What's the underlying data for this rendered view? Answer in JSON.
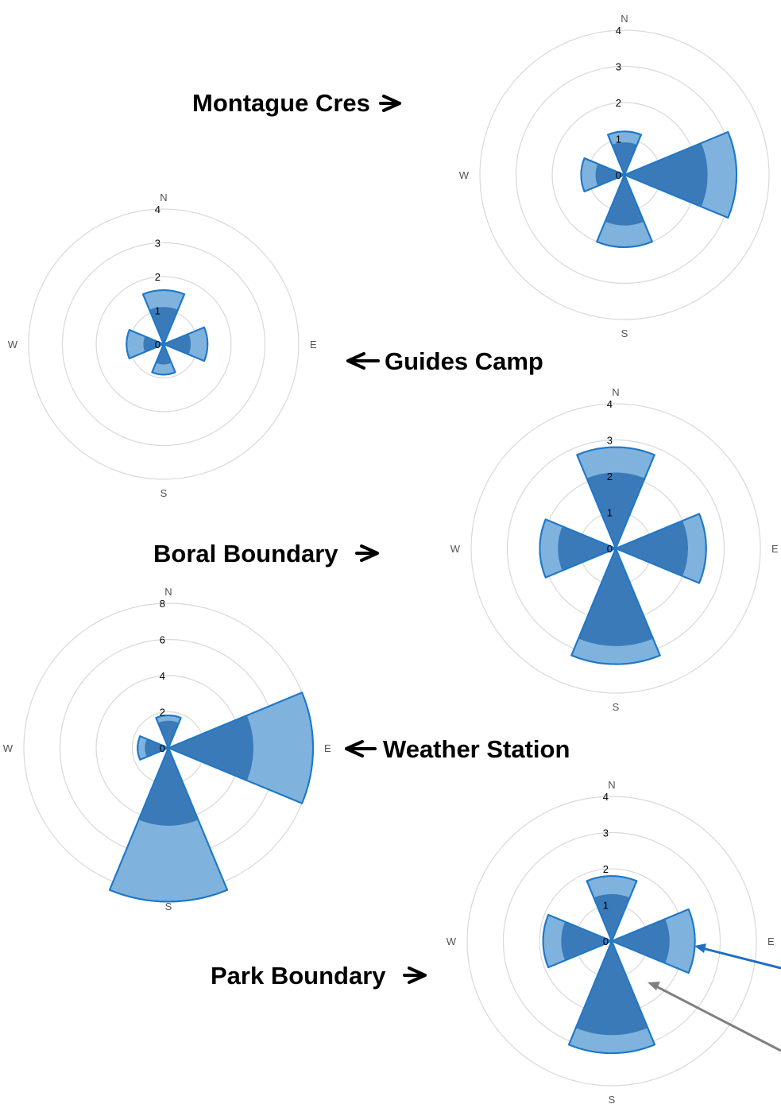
{
  "colors": {
    "outer_fill": "#7fb3dd",
    "inner_fill": "#3b7ab9",
    "stroke": "#1f78c8",
    "grid": "#d9d9d9",
    "arrow_blue": "#1f6fbf",
    "arrow_grey": "#808080"
  },
  "directions": {
    "n": "N",
    "e": "E",
    "s": "S",
    "w": "W"
  },
  "chart_data": [
    {
      "type": "radar",
      "subtype": "filled-sector rose",
      "site": "Montague Cres",
      "label_text": "Montague Cres",
      "label_arrow": "right",
      "radial_ticks": [
        "0",
        "1",
        "2",
        "3",
        "4"
      ],
      "rmax": 4,
      "categories": [
        "N",
        "E",
        "S",
        "W"
      ],
      "series": [
        {
          "values": [
            1.2,
            3.1,
            2.0,
            1.2
          ]
        },
        {
          "values": [
            0.9,
            2.3,
            1.4,
            0.8
          ]
        }
      ]
    },
    {
      "type": "radar",
      "subtype": "filled-sector rose",
      "site": "Guides Camp",
      "label_text": "Guides Camp",
      "label_arrow": "left",
      "radial_ticks": [
        "0",
        "1",
        "2",
        "3",
        "4"
      ],
      "rmax": 4,
      "categories": [
        "N",
        "E",
        "S",
        "W"
      ],
      "series": [
        {
          "values": [
            1.6,
            1.3,
            0.9,
            1.1
          ]
        },
        {
          "values": [
            1.1,
            0.8,
            0.6,
            0.6
          ]
        }
      ]
    },
    {
      "type": "radar",
      "subtype": "filled-sector rose",
      "site": "Boral Boundary",
      "label_text": "Boral Boundary",
      "label_arrow": "right",
      "radial_ticks": [
        "0",
        "1",
        "2",
        "3",
        "4"
      ],
      "rmax": 4,
      "categories": [
        "N",
        "E",
        "S",
        "W"
      ],
      "series": [
        {
          "values": [
            2.8,
            2.5,
            3.2,
            2.1
          ]
        },
        {
          "values": [
            2.1,
            2.0,
            2.7,
            1.6
          ]
        }
      ]
    },
    {
      "type": "radar",
      "subtype": "filled-sector rose",
      "site": "Weather Station",
      "label_text": "Weather Station",
      "label_arrow": "left",
      "radial_ticks": [
        "0",
        "2",
        "4",
        "6",
        "8"
      ],
      "rmax": 8,
      "categories": [
        "N",
        "E",
        "S",
        "W"
      ],
      "series": [
        {
          "values": [
            1.8,
            8.0,
            8.5,
            1.7
          ]
        },
        {
          "values": [
            1.5,
            4.7,
            4.3,
            1.3
          ]
        }
      ]
    },
    {
      "type": "radar",
      "subtype": "filled-sector rose",
      "site": "Park Boundary",
      "label_text": "Park Boundary",
      "label_arrow": "right",
      "radial_ticks": [
        "0",
        "1",
        "2",
        "3",
        "4"
      ],
      "rmax": 4,
      "categories": [
        "N",
        "E",
        "S",
        "W"
      ],
      "series": [
        {
          "values": [
            1.8,
            2.3,
            3.1,
            1.9
          ]
        },
        {
          "values": [
            1.3,
            1.6,
            2.6,
            1.4
          ]
        }
      ]
    }
  ]
}
